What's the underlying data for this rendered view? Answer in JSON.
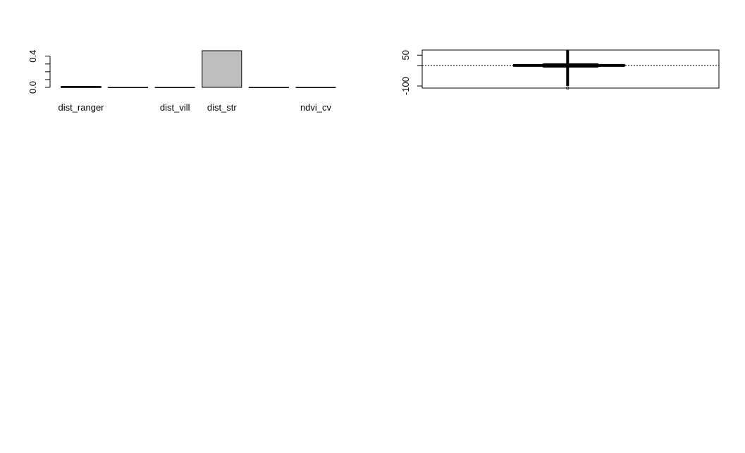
{
  "chart_data": [
    {
      "type": "bar",
      "categories": [
        "dist_ranger",
        "",
        "dist_vill",
        "dist_str",
        "",
        "ndvi_cv"
      ],
      "values": [
        0.01,
        0.0,
        0.0,
        0.47,
        0.0,
        0.0
      ],
      "highlight_index": 3,
      "bar_color": "#bebebe",
      "y_ticks": [
        "0.0",
        "0.4"
      ],
      "ylim": [
        0,
        0.47
      ],
      "grid": false
    },
    {
      "type": "line",
      "description": "",
      "y_ticks": [
        "-100",
        "50"
      ],
      "ylim": [
        -110,
        75
      ],
      "reference_line_y": 0,
      "whisker": {
        "x": 0.49,
        "y": 0,
        "x_low": 0.31,
        "x_high": 0.68,
        "x_q1": 0.41,
        "x_q3": 0.59,
        "y_low": -100,
        "y_high": 75
      },
      "grid": false
    }
  ]
}
